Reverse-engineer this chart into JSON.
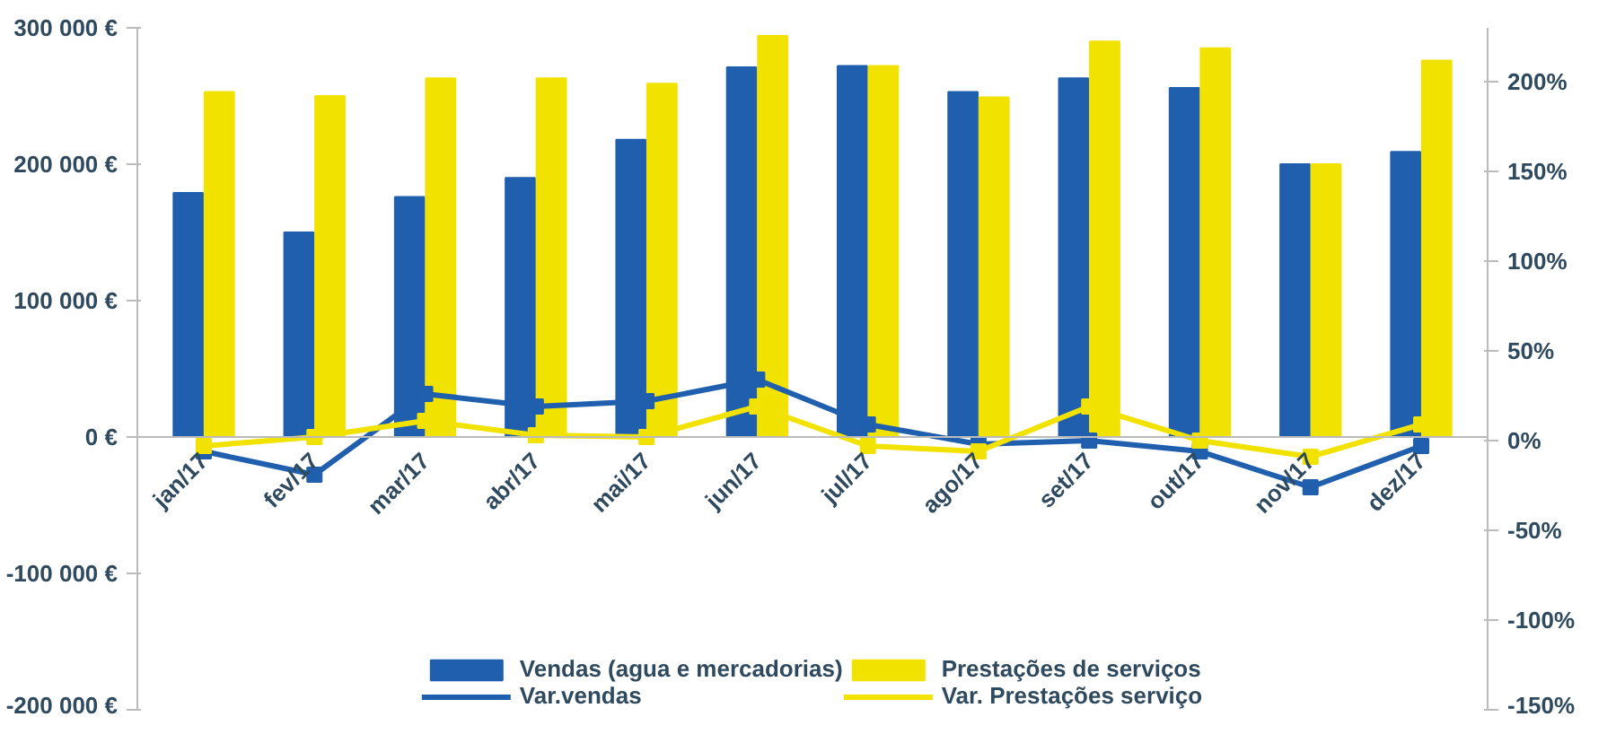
{
  "chart_data": {
    "type": "bar",
    "categories": [
      "jan/17",
      "fev/17",
      "mar/17",
      "abr/17",
      "mai/17",
      "jun/17",
      "jul/17",
      "ago/17",
      "set/17",
      "out/17",
      "nov/17",
      "dez/17"
    ],
    "series": [
      {
        "name": "Vendas (agua e mercadorias)",
        "color": "#1f5fae",
        "values": [
          179000,
          150000,
          176000,
          190000,
          218000,
          271000,
          272000,
          253000,
          263000,
          256000,
          200000,
          209000
        ]
      },
      {
        "name": "Prestações de serviços",
        "color": "#f2e200",
        "values": [
          253000,
          250000,
          263000,
          263000,
          259000,
          294000,
          272000,
          249000,
          290000,
          285000,
          200000,
          276000
        ]
      },
      {
        "name": "Var.vendas",
        "type": "line",
        "axis": "y2",
        "color": "#1f5fae",
        "marker": "square",
        "values": [
          -6,
          -19,
          26,
          19,
          22,
          34,
          9,
          -2,
          0,
          -6,
          -26,
          -3
        ]
      },
      {
        "name": "Var. Prestações serviço",
        "type": "line",
        "axis": "y2",
        "color": "#f2e200",
        "marker": "square",
        "values": [
          -3,
          2,
          11,
          3,
          2,
          19,
          -3,
          -6,
          19,
          0,
          -9,
          9
        ]
      }
    ],
    "ylim": [
      -200000,
      300000
    ],
    "yticks": [
      {
        "value": -200000,
        "label": "-200 000 €"
      },
      {
        "value": -100000,
        "label": "-100 000 €"
      },
      {
        "value": 0,
        "label": "0 €"
      },
      {
        "value": 100000,
        "label": "100 000 €"
      },
      {
        "value": 200000,
        "label": "200 000 €"
      },
      {
        "value": 300000,
        "label": "300 000 €"
      }
    ],
    "y2lim": [
      -150,
      230
    ],
    "y2ticks": [
      {
        "value": -150,
        "label": "-150%"
      },
      {
        "value": -100,
        "label": "-100%"
      },
      {
        "value": -50,
        "label": "-50%"
      },
      {
        "value": 0,
        "label": "0%"
      },
      {
        "value": 50,
        "label": "50%"
      },
      {
        "value": 100,
        "label": "100%"
      },
      {
        "value": 150,
        "label": "150%"
      },
      {
        "value": 200,
        "label": "200%"
      }
    ],
    "grid": false,
    "legend": "bottom"
  }
}
